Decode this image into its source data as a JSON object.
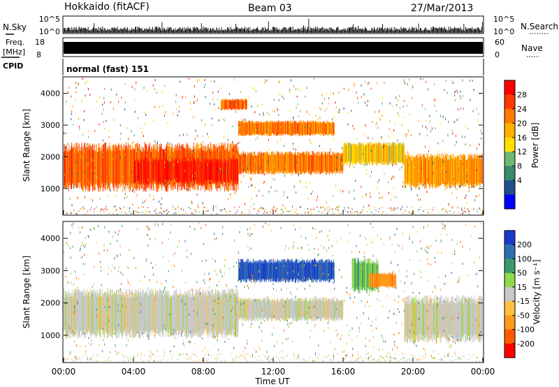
{
  "header": {
    "station": "Hokkaido (fitACF)",
    "beam": "Beam 03",
    "date": "27/Mar/2013"
  },
  "panels": {
    "nsky": {
      "label": "N.Sky",
      "ticks": [
        "10^5",
        "10^0"
      ],
      "right_ticks": [
        "10^5",
        "10^0"
      ],
      "right_label": "N.Search"
    },
    "freq": {
      "label_line1": "Freq.",
      "label_line2": "[MHz]",
      "ticks": [
        "18",
        "8"
      ],
      "right_ticks": [
        "60",
        "0"
      ],
      "right_label": "Nave"
    },
    "cpid": {
      "label": "CPID",
      "value": "normal (fast) 151"
    }
  },
  "axes": {
    "ylabel": "Slant Range [km]",
    "xlabel": "Time UT",
    "yticks": [
      1000,
      2000,
      3000,
      4000
    ],
    "xticks": [
      "00:00",
      "04:00",
      "08:00",
      "12:00",
      "16:00",
      "20:00",
      "00:00"
    ]
  },
  "colorbars": {
    "power": {
      "label": "Power [dB]",
      "ticks": [
        "28",
        "24",
        "20",
        "16",
        "12",
        "8",
        "4"
      ],
      "colors": [
        "#ff0000",
        "#ff3a00",
        "#ff7a00",
        "#ffb000",
        "#ffe000",
        "#6fb86f",
        "#3a8a6a",
        "#20508a",
        "#0000ff"
      ]
    },
    "velocity": {
      "label": "Velocity [m s⁻¹]",
      "ticks": [
        "200",
        "100",
        "50",
        "15",
        "-15",
        "-50",
        "-100",
        "-200"
      ],
      "colors": [
        "#1a3acc",
        "#2f6fb0",
        "#3a9a6a",
        "#8ed84a",
        "#c8c8c8",
        "#ffc040",
        "#ff9a1a",
        "#ff5a00",
        "#ff0000"
      ]
    }
  },
  "chart_data": [
    {
      "type": "heatmap",
      "name_ref": "power",
      "title": "",
      "xlabel": "Time UT",
      "ylabel": "Slant Range [km]",
      "xlim": [
        0,
        24
      ],
      "ylim": [
        180,
        4500
      ],
      "bands": [
        {
          "t": [
            0,
            10
          ],
          "r": [
            1050,
            2300
          ],
          "value_db": 24
        },
        {
          "t": [
            4,
            10
          ],
          "r": [
            1200,
            1900
          ],
          "value_db": 28
        },
        {
          "t": [
            10,
            16
          ],
          "r": [
            1500,
            2100
          ],
          "value_db": 22
        },
        {
          "t": [
            10,
            15.5
          ],
          "r": [
            2700,
            3100
          ],
          "value_db": 22
        },
        {
          "t": [
            16,
            19.5
          ],
          "r": [
            1800,
            2400
          ],
          "value_db": 16
        },
        {
          "t": [
            19.5,
            24
          ],
          "r": [
            1100,
            2000
          ],
          "value_db": 20
        },
        {
          "t": [
            9,
            10.5
          ],
          "r": [
            3500,
            3800
          ],
          "value_db": 24
        }
      ]
    },
    {
      "type": "heatmap",
      "name_ref": "velocity",
      "title": "",
      "xlabel": "Time UT",
      "ylabel": "Slant Range [km]",
      "xlim": [
        0,
        24
      ],
      "ylim": [
        180,
        4500
      ],
      "bands": [
        {
          "t": [
            0,
            10
          ],
          "r": [
            1050,
            2300
          ],
          "value_ms": 0
        },
        {
          "t": [
            10,
            16
          ],
          "r": [
            1500,
            2100
          ],
          "value_ms": 0
        },
        {
          "t": [
            10,
            15.5
          ],
          "r": [
            2700,
            3300
          ],
          "value_ms": 200
        },
        {
          "t": [
            16.5,
            18
          ],
          "r": [
            2400,
            3300
          ],
          "value_ms": 50
        },
        {
          "t": [
            17.5,
            19
          ],
          "r": [
            2500,
            2900
          ],
          "value_ms": -100
        },
        {
          "t": [
            19.5,
            24
          ],
          "r": [
            900,
            2100
          ],
          "value_ms": 0
        }
      ]
    }
  ]
}
